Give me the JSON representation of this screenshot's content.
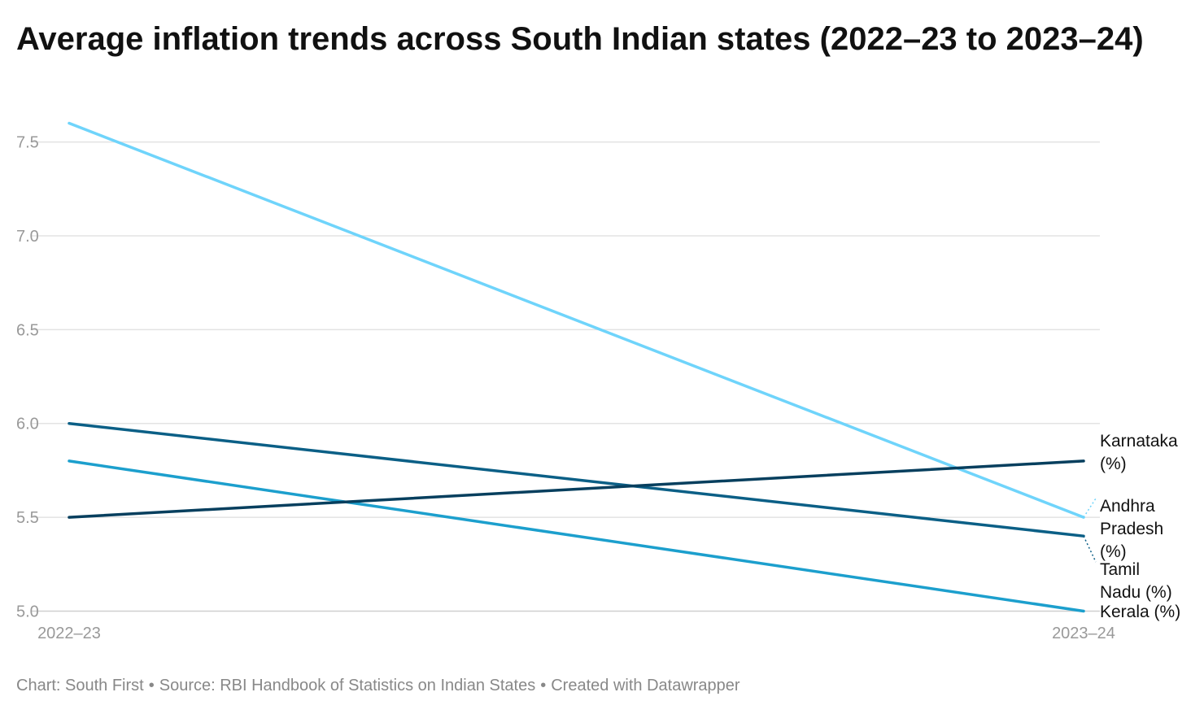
{
  "chart_data": {
    "type": "line",
    "title": "Average inflation trends across South Indian states (2022–23 to 2023–24)",
    "categories": [
      "2022–23",
      "2023–24"
    ],
    "ylim": [
      5.0,
      7.6
    ],
    "yticks": [
      "5.0",
      "5.5",
      "6.0",
      "6.5",
      "7.0",
      "7.5"
    ],
    "grid": true,
    "legend": "direct labels at right end of lines",
    "series": [
      {
        "name": "Andhra Pradesh (%)",
        "values": [
          7.6,
          5.5
        ],
        "color": "#6fd4fb",
        "label_lines": [
          "Andhra",
          "Pradesh",
          "(%)"
        ]
      },
      {
        "name": "Tamil Nadu (%)",
        "values": [
          6.0,
          5.4
        ],
        "color": "#0b5f86",
        "label_lines": [
          "Tamil",
          "Nadu (%)"
        ]
      },
      {
        "name": "Kerala (%)",
        "values": [
          5.8,
          5.0
        ],
        "color": "#1c9fcd",
        "label_lines": [
          "Kerala (%)"
        ]
      },
      {
        "name": "Karnataka (%)",
        "values": [
          5.5,
          5.8
        ],
        "color": "#073f5e",
        "label_lines": [
          "Karnataka",
          "(%)"
        ]
      }
    ]
  },
  "footer": {
    "credit": "Chart: South First",
    "source": "Source: RBI Handbook of Statistics on Indian States",
    "tool": "Created with Datawrapper",
    "separator": "•"
  }
}
